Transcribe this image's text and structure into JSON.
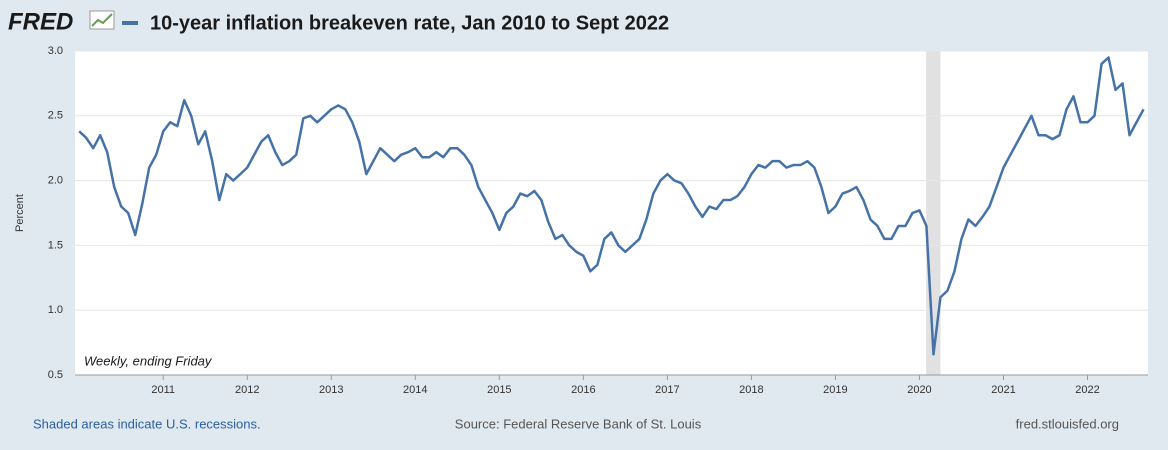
{
  "chart_data": {
    "type": "line",
    "logo": "FRED",
    "y_label": "Percent",
    "annotation": "Weekly, ending Friday",
    "footer_left": "Shaded areas indicate U.S. recessions.",
    "footer_center": "Source: Federal Reserve Bank of St. Louis",
    "footer_right": "fred.stlouisfed.org",
    "xlim": [
      2009.95,
      2022.72
    ],
    "ylim": [
      0.5,
      3.0
    ],
    "xticks": [
      2011,
      2012,
      2013,
      2014,
      2015,
      2016,
      2017,
      2018,
      2019,
      2020,
      2021,
      2022
    ],
    "yticks": [
      0.5,
      {
        "value": 1,
        "label": "1.0"
      },
      1.5,
      {
        "value": 2,
        "label": "2.0"
      },
      2.5,
      {
        "value": 3,
        "label": "3.0"
      }
    ],
    "grid": true,
    "recessions": [
      [
        2020.08,
        2020.25
      ]
    ],
    "recession_color": "#e1e1e1",
    "x": [
      2010.0,
      2010.083,
      2010.167,
      2010.25,
      2010.333,
      2010.417,
      2010.5,
      2010.583,
      2010.667,
      2010.75,
      2010.833,
      2010.917,
      2011.0,
      2011.083,
      2011.167,
      2011.25,
      2011.333,
      2011.417,
      2011.5,
      2011.583,
      2011.667,
      2011.75,
      2011.833,
      2011.917,
      2012.0,
      2012.083,
      2012.167,
      2012.25,
      2012.333,
      2012.417,
      2012.5,
      2012.583,
      2012.667,
      2012.75,
      2012.833,
      2012.917,
      2013.0,
      2013.083,
      2013.167,
      2013.25,
      2013.333,
      2013.417,
      2013.5,
      2013.583,
      2013.667,
      2013.75,
      2013.833,
      2013.917,
      2014.0,
      2014.083,
      2014.167,
      2014.25,
      2014.333,
      2014.417,
      2014.5,
      2014.583,
      2014.667,
      2014.75,
      2014.833,
      2014.917,
      2015.0,
      2015.083,
      2015.167,
      2015.25,
      2015.333,
      2015.417,
      2015.5,
      2015.583,
      2015.667,
      2015.75,
      2015.833,
      2015.917,
      2016.0,
      2016.083,
      2016.167,
      2016.25,
      2016.333,
      2016.417,
      2016.5,
      2016.583,
      2016.667,
      2016.75,
      2016.833,
      2016.917,
      2017.0,
      2017.083,
      2017.167,
      2017.25,
      2017.333,
      2017.417,
      2017.5,
      2017.583,
      2017.667,
      2017.75,
      2017.833,
      2017.917,
      2018.0,
      2018.083,
      2018.167,
      2018.25,
      2018.333,
      2018.417,
      2018.5,
      2018.583,
      2018.667,
      2018.75,
      2018.833,
      2018.917,
      2019.0,
      2019.083,
      2019.167,
      2019.25,
      2019.333,
      2019.417,
      2019.5,
      2019.583,
      2019.667,
      2019.75,
      2019.833,
      2019.917,
      2020.0,
      2020.083,
      2020.167,
      2020.25,
      2020.333,
      2020.417,
      2020.5,
      2020.583,
      2020.667,
      2020.75,
      2020.833,
      2020.917,
      2021.0,
      2021.083,
      2021.167,
      2021.25,
      2021.333,
      2021.417,
      2021.5,
      2021.583,
      2021.667,
      2021.75,
      2021.833,
      2021.917,
      2022.0,
      2022.083,
      2022.167,
      2022.25,
      2022.333,
      2022.417,
      2022.5,
      2022.583,
      2022.667
    ],
    "series": [
      {
        "name": "10-year inflation breakeven rate, Jan 2010 to Sept 2022",
        "color": "#4572a7",
        "values": [
          2.38,
          2.33,
          2.25,
          2.35,
          2.22,
          1.95,
          1.8,
          1.75,
          1.58,
          1.82,
          2.1,
          2.2,
          2.38,
          2.45,
          2.42,
          2.62,
          2.5,
          2.28,
          2.38,
          2.15,
          1.85,
          2.05,
          2.0,
          2.05,
          2.1,
          2.2,
          2.3,
          2.35,
          2.22,
          2.12,
          2.15,
          2.2,
          2.48,
          2.5,
          2.45,
          2.5,
          2.55,
          2.58,
          2.55,
          2.45,
          2.3,
          2.05,
          2.15,
          2.25,
          2.2,
          2.15,
          2.2,
          2.22,
          2.25,
          2.18,
          2.18,
          2.22,
          2.18,
          2.25,
          2.25,
          2.2,
          2.12,
          1.95,
          1.85,
          1.75,
          1.62,
          1.75,
          1.8,
          1.9,
          1.88,
          1.92,
          1.85,
          1.68,
          1.55,
          1.58,
          1.5,
          1.45,
          1.42,
          1.3,
          1.35,
          1.55,
          1.6,
          1.5,
          1.45,
          1.5,
          1.55,
          1.7,
          1.9,
          2.0,
          2.05,
          2.0,
          1.98,
          1.9,
          1.8,
          1.72,
          1.8,
          1.78,
          1.85,
          1.85,
          1.88,
          1.95,
          2.05,
          2.12,
          2.1,
          2.15,
          2.15,
          2.1,
          2.12,
          2.12,
          2.15,
          2.1,
          1.95,
          1.75,
          1.8,
          1.9,
          1.92,
          1.95,
          1.85,
          1.7,
          1.65,
          1.55,
          1.55,
          1.65,
          1.65,
          1.75,
          1.77,
          1.65,
          0.66,
          1.1,
          1.15,
          1.3,
          1.55,
          1.7,
          1.65,
          1.72,
          1.8,
          1.95,
          2.1,
          2.2,
          2.3,
          2.4,
          2.5,
          2.35,
          2.35,
          2.32,
          2.35,
          2.55,
          2.65,
          2.45,
          2.45,
          2.5,
          2.9,
          2.95,
          2.7,
          2.75,
          2.35,
          2.45,
          2.55
        ]
      }
    ]
  }
}
